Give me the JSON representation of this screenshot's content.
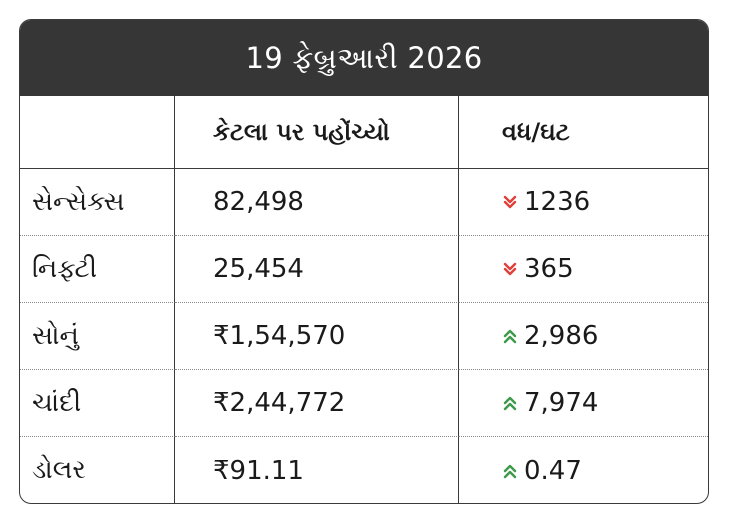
{
  "title": "19 ફેબ્રુઆરી 2026",
  "headers": {
    "col1": "",
    "col2": "કેટલા પર પહોંચ્યો",
    "col3": "વધ/ઘટ"
  },
  "rows": [
    {
      "name": "સેન્સેક્સ",
      "value": "82,498",
      "change": "1236",
      "direction": "down"
    },
    {
      "name": "નિફ્ટી",
      "value": "25,454",
      "change": "365",
      "direction": "down"
    },
    {
      "name": "સોનું",
      "value": "₹1,54,570",
      "change": "2,986",
      "direction": "up"
    },
    {
      "name": "ચાંદી",
      "value": "₹2,44,772",
      "change": "7,974",
      "direction": "up"
    },
    {
      "name": "ડોલર",
      "value": "₹91.11",
      "change": "0.47",
      "direction": "up"
    }
  ],
  "colors": {
    "up": "#3d9a4a",
    "down": "#e0403a",
    "header_bg": "#363636"
  },
  "icons": {
    "up": "double-chevron-up-icon",
    "down": "double-chevron-down-icon"
  }
}
